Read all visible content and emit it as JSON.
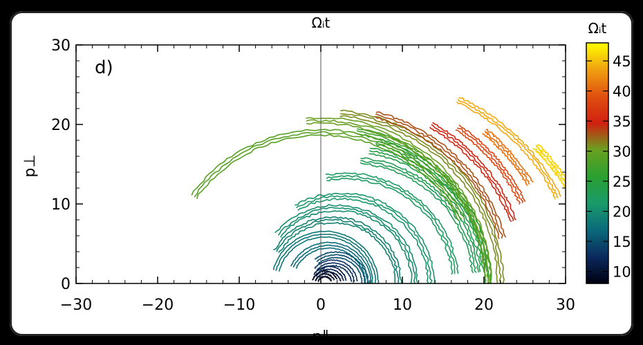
{
  "chart_data": {
    "type": "scatter",
    "panel_label": "d)",
    "top_label": "Ωᵢt",
    "xlabel": "p∥",
    "ylabel": "p⊥",
    "xlim": [
      -30,
      30
    ],
    "ylim": [
      0,
      30
    ],
    "xticks": [
      "−30",
      "−20",
      "−10",
      "0",
      "10",
      "20",
      "30"
    ],
    "yticks": [
      "0",
      "10",
      "20",
      "30"
    ],
    "colorbar": {
      "label": "Ωᵢt",
      "range": [
        8,
        48
      ],
      "ticks": [
        "10",
        "15",
        "20",
        "25",
        "30",
        "35",
        "40",
        "45"
      ],
      "colormap": [
        "#000010",
        "#0a2a5e",
        "#0a6a7a",
        "#1a9a6a",
        "#2aa030",
        "#6aa020",
        "#d02010",
        "#e05010",
        "#f0a010",
        "#ffff00"
      ]
    },
    "tracks": [
      {
        "t": 9,
        "r": 1.2,
        "cx": 0.5,
        "a0": 20,
        "a1": 165
      },
      {
        "t": 11,
        "r": 1.8,
        "cx": 1.0,
        "a0": 10,
        "a1": 150
      },
      {
        "t": 13,
        "r": 2.6,
        "cx": 1.5,
        "a0": 5,
        "a1": 140
      },
      {
        "t": 15,
        "r": 3.6,
        "cx": 1.8,
        "a0": 0,
        "a1": 130
      },
      {
        "t": 17,
        "r": 4.8,
        "cx": 1.0,
        "a0": 0,
        "a1": 155
      },
      {
        "t": 18,
        "r": 6.2,
        "cx": 0.5,
        "a0": 0,
        "a1": 165
      },
      {
        "t": 19,
        "r": 8.0,
        "cx": 1.5,
        "a0": 0,
        "a1": 150
      },
      {
        "t": 20,
        "r": 9.5,
        "cx": 2.0,
        "a0": 0,
        "a1": 140
      },
      {
        "t": 21,
        "r": 11.0,
        "cx": 2.5,
        "a0": 0,
        "a1": 120
      },
      {
        "t": 22,
        "r": 13.5,
        "cx": 3.0,
        "a0": 5,
        "a1": 100
      },
      {
        "t": 23,
        "r": 15.5,
        "cx": 3.5,
        "a0": 5,
        "a1": 85
      },
      {
        "t": 24,
        "r": 17.0,
        "cx": 3.0,
        "a0": 5,
        "a1": 80
      },
      {
        "t": 25,
        "r": 18.5,
        "cx": 2.0,
        "a0": 0,
        "a1": 75
      },
      {
        "t": 27,
        "r": 19.5,
        "cx": 1.0,
        "a0": 0,
        "a1": 80
      },
      {
        "t": 29,
        "r": 19.0,
        "cx": 0.0,
        "a0": 25,
        "a1": 145
      },
      {
        "t": 30,
        "r": 20.5,
        "cx": 0.0,
        "a0": 0,
        "a1": 95
      },
      {
        "t": 31,
        "r": 21.5,
        "cx": 0.5,
        "a0": 0,
        "a1": 85
      },
      {
        "t": 33,
        "r": 22.0,
        "cx": 1.0,
        "a0": 15,
        "a1": 75
      },
      {
        "t": 35,
        "r": 23.0,
        "cx": 2.0,
        "a0": 20,
        "a1": 60
      },
      {
        "t": 38,
        "r": 24.0,
        "cx": 3.0,
        "a0": 25,
        "a1": 55
      },
      {
        "t": 41,
        "r": 25.0,
        "cx": 4.0,
        "a0": 30,
        "a1": 50
      },
      {
        "t": 44,
        "r": 25.5,
        "cx": 6.0,
        "a0": 25,
        "a1": 65
      },
      {
        "t": 46,
        "r": 24.5,
        "cx": 9.0,
        "a0": 30,
        "a1": 45
      }
    ]
  }
}
